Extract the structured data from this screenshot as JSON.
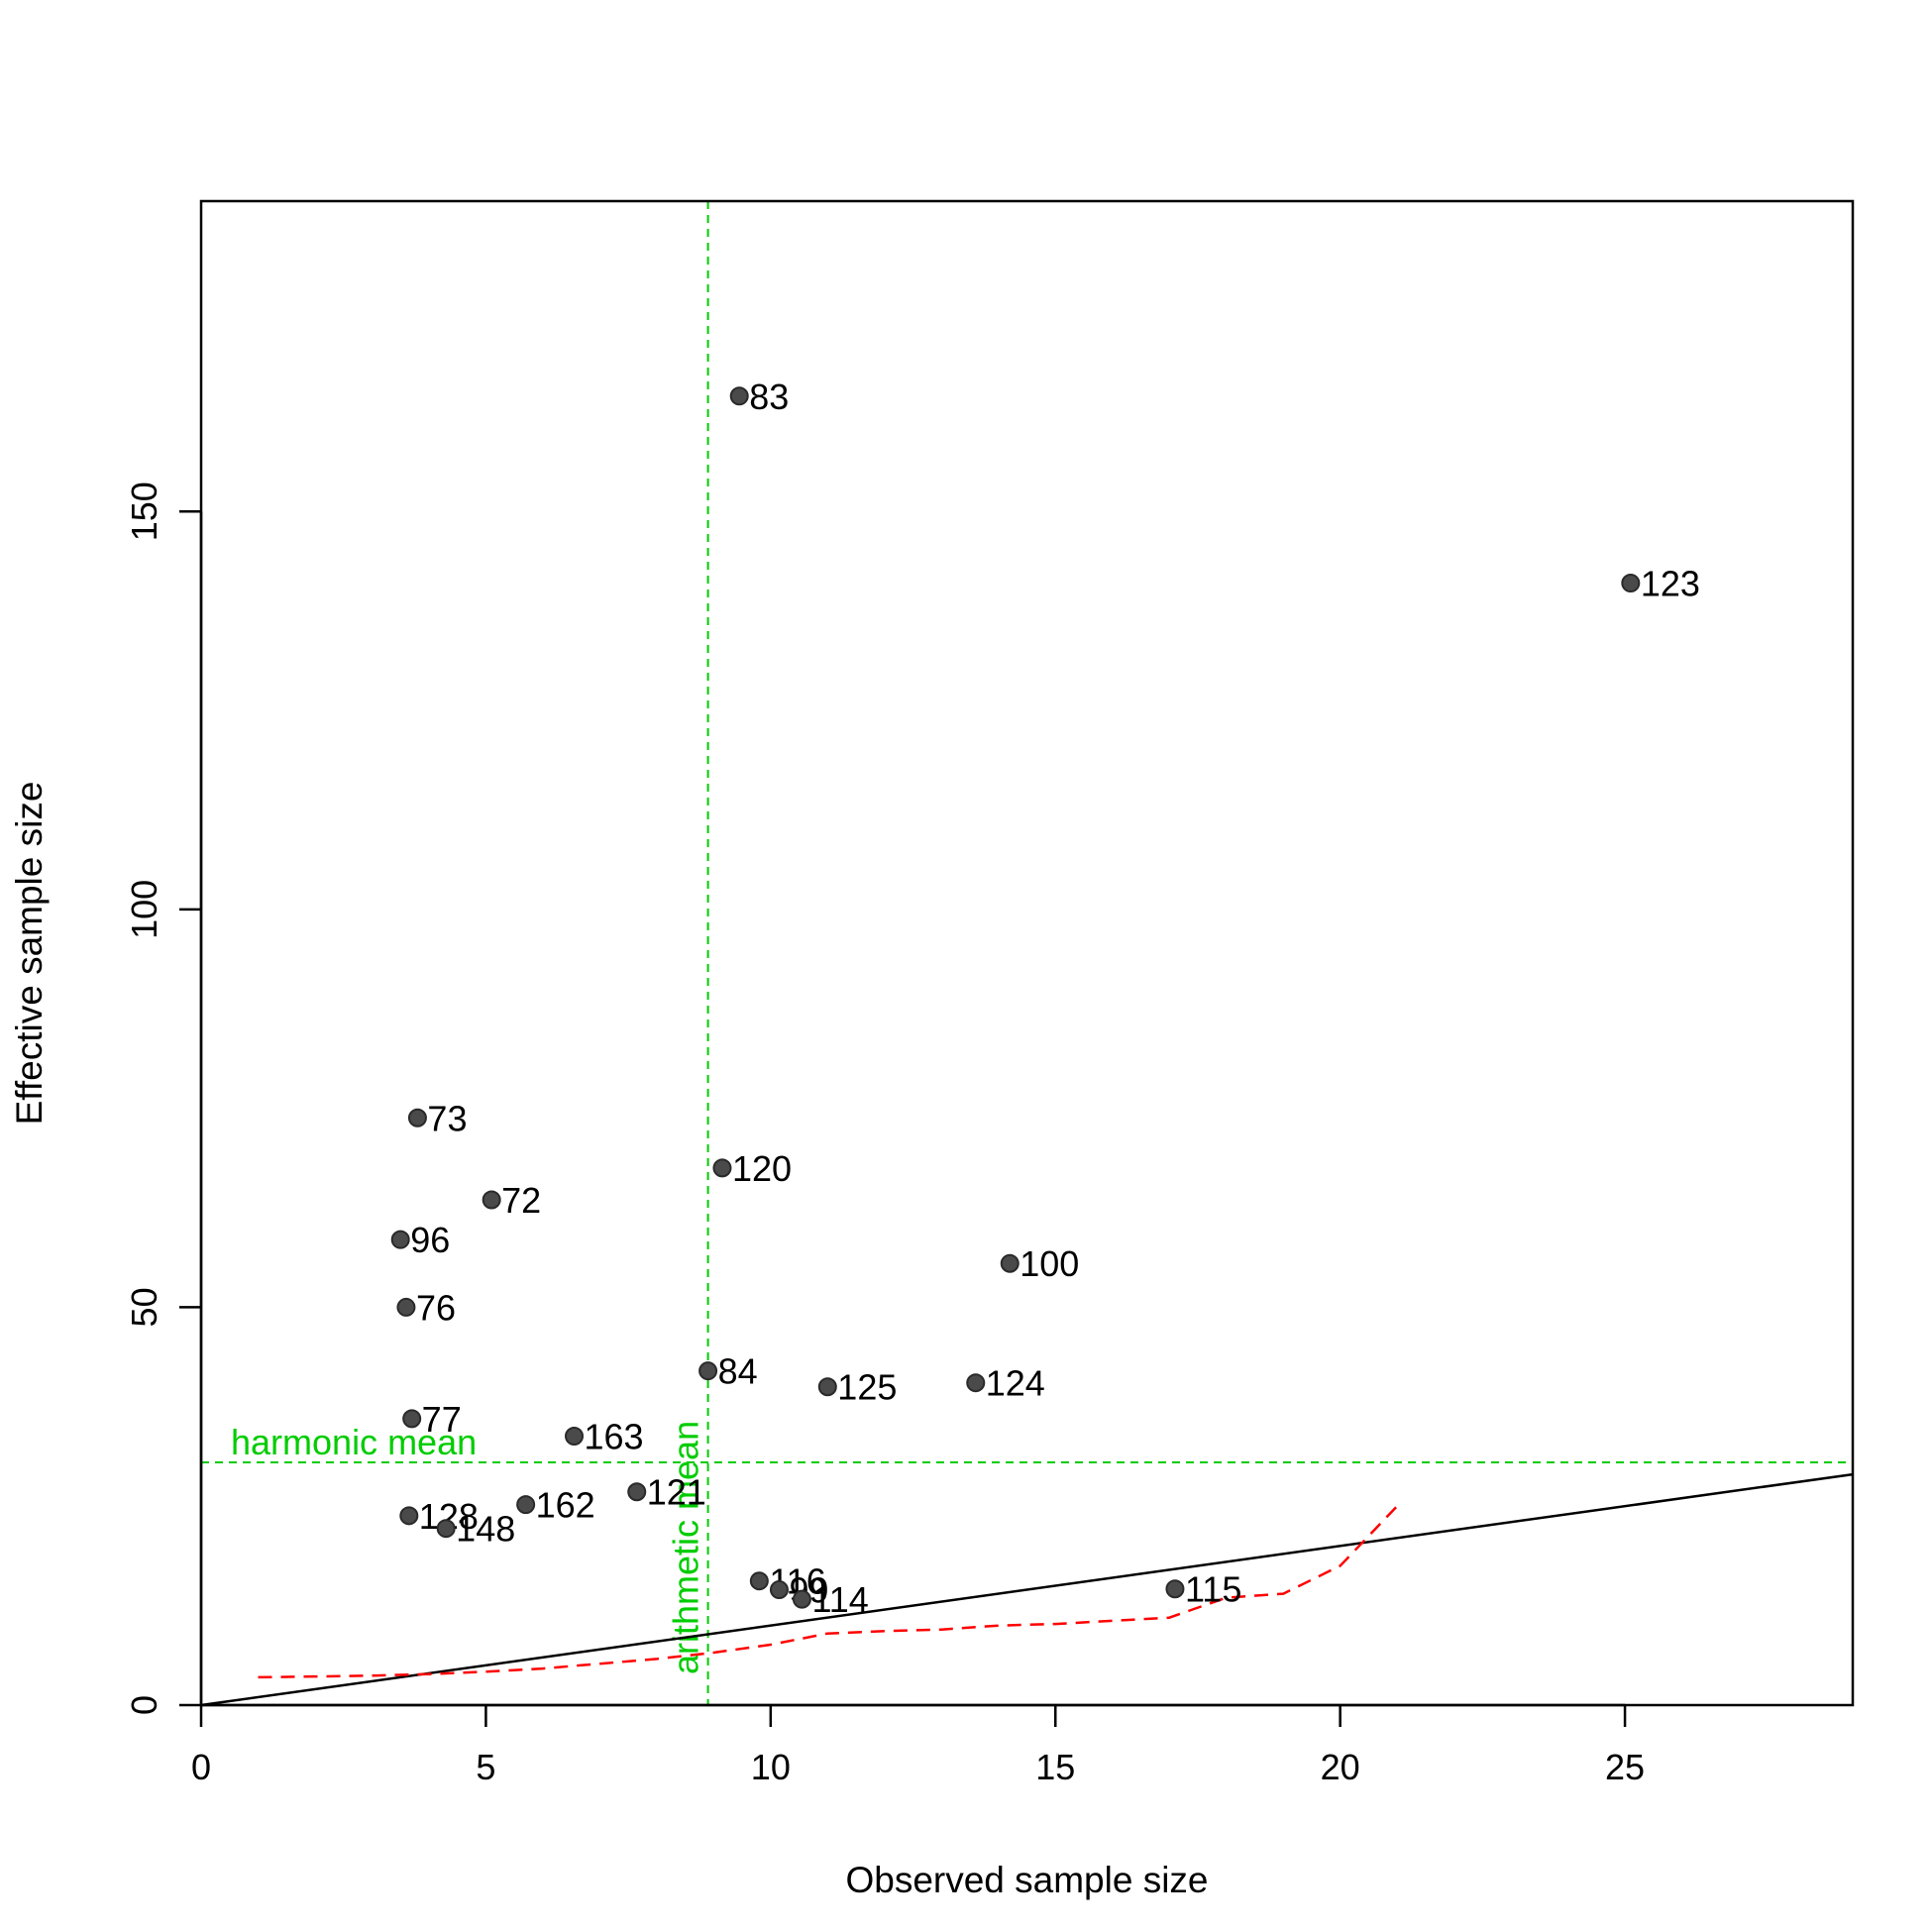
{
  "chart_data": {
    "type": "scatter",
    "title": "",
    "xlabel": "Observed sample size",
    "ylabel": "Effective sample size",
    "xlim": [
      0,
      29
    ],
    "ylim": [
      0,
      189
    ],
    "x_ticks": [
      0,
      5,
      10,
      15,
      20,
      25
    ],
    "y_ticks": [
      0,
      50,
      100,
      150
    ],
    "grid": false,
    "point_color": "#4a4a4a",
    "points": [
      {
        "label": "83",
        "x": 9.45,
        "y": 164.5
      },
      {
        "label": "123",
        "x": 25.1,
        "y": 141.0
      },
      {
        "label": "73",
        "x": 3.8,
        "y": 73.8
      },
      {
        "label": "120",
        "x": 9.15,
        "y": 67.5
      },
      {
        "label": "72",
        "x": 5.1,
        "y": 63.5
      },
      {
        "label": "96",
        "x": 3.5,
        "y": 58.5
      },
      {
        "label": "100",
        "x": 14.2,
        "y": 55.5
      },
      {
        "label": "76",
        "x": 3.6,
        "y": 50.0
      },
      {
        "label": "84",
        "x": 8.9,
        "y": 42.0
      },
      {
        "label": "125",
        "x": 11.0,
        "y": 40.0
      },
      {
        "label": "124",
        "x": 13.6,
        "y": 40.5
      },
      {
        "label": "77",
        "x": 3.7,
        "y": 36.0
      },
      {
        "label": "163",
        "x": 6.55,
        "y": 33.8
      },
      {
        "label": "121",
        "x": 7.65,
        "y": 26.8
      },
      {
        "label": "162",
        "x": 5.7,
        "y": 25.2
      },
      {
        "label": "128",
        "x": 3.65,
        "y": 23.8
      },
      {
        "label": "148",
        "x": 4.3,
        "y": 22.2
      },
      {
        "label": "116",
        "x": 9.8,
        "y": 15.6
      },
      {
        "label": "99",
        "x": 10.15,
        "y": 14.5
      },
      {
        "label": "114",
        "x": 10.55,
        "y": 13.3
      },
      {
        "label": "115",
        "x": 17.1,
        "y": 14.6
      }
    ],
    "identity_line": {
      "slope": 1,
      "intercept": 0,
      "color": "#000000"
    },
    "smooth_curve": {
      "color": "#ff0000",
      "x": [
        1,
        2,
        3,
        4,
        5,
        6,
        7,
        8,
        9,
        10,
        11,
        12,
        13,
        14,
        15,
        16,
        17,
        18,
        19,
        20,
        21
      ],
      "y": [
        3.5,
        3.6,
        3.7,
        3.9,
        4.2,
        4.6,
        5.2,
        5.8,
        6.6,
        7.6,
        9.0,
        9.3,
        9.5,
        10.0,
        10.2,
        10.6,
        11.0,
        13.5,
        14.0,
        17.5,
        25.0
      ]
    },
    "reference_lines": {
      "color": "#00cc00",
      "harmonic_mean": {
        "value": 30.5,
        "label": "harmonic mean"
      },
      "arithmetic_mean": {
        "value": 8.9,
        "label": "arithmetic mean"
      }
    }
  }
}
